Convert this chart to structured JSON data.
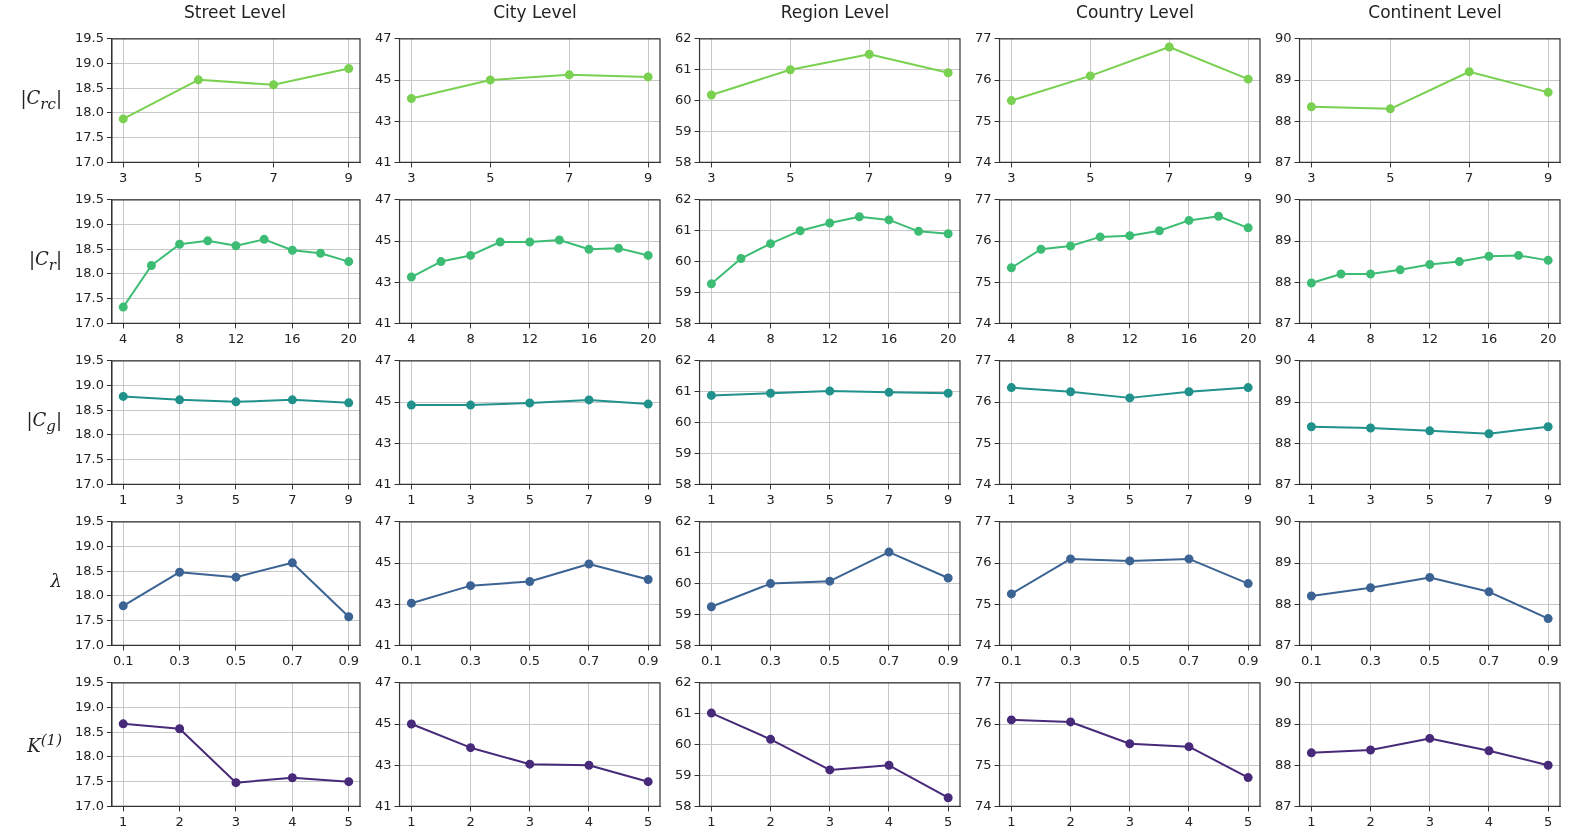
{
  "chart_data": [
    {
      "type": "line",
      "title": "Street Level",
      "ylabel": "|C$_{rc}$|",
      "x": [
        3,
        5,
        7,
        9
      ],
      "values": [
        17.88,
        18.67,
        18.57,
        18.9
      ],
      "color": "#7ad151",
      "xlim": [
        2.7,
        9.3
      ],
      "xticks": [
        3,
        5,
        7,
        9
      ],
      "ylim": [
        17,
        19.5
      ],
      "yticks": [
        {
          "value": 17,
          "label": "17.0"
        },
        17.5,
        {
          "value": 18,
          "label": "18.0"
        },
        18.5,
        {
          "value": 19,
          "label": "19.0"
        },
        19.5
      ],
      "grid": true,
      "marker": "circle"
    },
    {
      "type": "line",
      "title": "City Level",
      "x": [
        3,
        5,
        7,
        9
      ],
      "values": [
        44.1,
        45.0,
        45.25,
        45.15
      ],
      "color": "#7ad151",
      "xlim": [
        2.7,
        9.3
      ],
      "xticks": [
        3,
        5,
        7,
        9
      ],
      "ylim": [
        41,
        47
      ],
      "yticks": [
        41,
        43,
        45,
        47
      ],
      "grid": true,
      "marker": "circle"
    },
    {
      "type": "line",
      "title": "Region Level",
      "x": [
        3,
        5,
        7,
        9
      ],
      "values": [
        60.18,
        61.0,
        61.5,
        60.9
      ],
      "color": "#7ad151",
      "xlim": [
        2.7,
        9.3
      ],
      "xticks": [
        3,
        5,
        7,
        9
      ],
      "ylim": [
        58,
        62
      ],
      "yticks": [
        58,
        59,
        60,
        61,
        62
      ],
      "grid": true,
      "marker": "circle"
    },
    {
      "type": "line",
      "title": "Country Level",
      "x": [
        3,
        5,
        7,
        9
      ],
      "values": [
        75.5,
        76.1,
        76.8,
        76.02
      ],
      "color": "#7ad151",
      "xlim": [
        2.7,
        9.3
      ],
      "xticks": [
        3,
        5,
        7,
        9
      ],
      "ylim": [
        74,
        77
      ],
      "yticks": [
        74,
        75,
        76,
        77
      ],
      "grid": true,
      "marker": "circle"
    },
    {
      "type": "line",
      "title": "Continent Level",
      "x": [
        3,
        5,
        7,
        9
      ],
      "values": [
        88.35,
        88.3,
        89.2,
        88.7
      ],
      "color": "#7ad151",
      "xlim": [
        2.7,
        9.3
      ],
      "xticks": [
        3,
        5,
        7,
        9
      ],
      "ylim": [
        87,
        90
      ],
      "yticks": [
        87,
        88,
        89,
        90
      ],
      "grid": true,
      "marker": "circle"
    },
    {
      "type": "line",
      "ylabel": "|C$_{r}$|",
      "x": [
        4,
        6,
        8,
        10,
        12,
        14,
        16,
        18,
        20
      ],
      "values": [
        17.33,
        18.17,
        18.6,
        18.67,
        18.57,
        18.7,
        18.48,
        18.42,
        18.25
      ],
      "color": "#3dbc74",
      "xlim": [
        3.2,
        20.8
      ],
      "xticks": [
        4,
        8,
        12,
        16,
        20
      ],
      "ylim": [
        17,
        19.5
      ],
      "yticks": [
        {
          "value": 17,
          "label": "17.0"
        },
        17.5,
        {
          "value": 18,
          "label": "18.0"
        },
        18.5,
        {
          "value": 19,
          "label": "19.0"
        },
        19.5
      ],
      "grid": true,
      "marker": "circle"
    },
    {
      "type": "line",
      "x": [
        4,
        6,
        8,
        10,
        12,
        14,
        16,
        18,
        20
      ],
      "values": [
        43.25,
        44.0,
        44.3,
        44.95,
        44.95,
        45.05,
        44.6,
        44.65,
        44.3
      ],
      "color": "#3dbc74",
      "xlim": [
        3.2,
        20.8
      ],
      "xticks": [
        4,
        8,
        12,
        16,
        20
      ],
      "ylim": [
        41,
        47
      ],
      "yticks": [
        41,
        43,
        45,
        47
      ],
      "grid": true,
      "marker": "circle"
    },
    {
      "type": "line",
      "x": [
        4,
        6,
        8,
        10,
        12,
        14,
        16,
        18,
        20
      ],
      "values": [
        59.28,
        60.1,
        60.58,
        61.0,
        61.25,
        61.45,
        61.35,
        60.98,
        60.9
      ],
      "color": "#3dbc74",
      "xlim": [
        3.2,
        20.8
      ],
      "xticks": [
        4,
        8,
        12,
        16,
        20
      ],
      "ylim": [
        58,
        62
      ],
      "yticks": [
        58,
        59,
        60,
        61,
        62
      ],
      "grid": true,
      "marker": "circle"
    },
    {
      "type": "line",
      "x": [
        4,
        6,
        8,
        10,
        12,
        14,
        16,
        18,
        20
      ],
      "values": [
        75.35,
        75.8,
        75.88,
        76.1,
        76.13,
        76.25,
        76.5,
        76.6,
        76.32
      ],
      "color": "#3dbc74",
      "xlim": [
        3.2,
        20.8
      ],
      "xticks": [
        4,
        8,
        12,
        16,
        20
      ],
      "ylim": [
        74,
        77
      ],
      "yticks": [
        74,
        75,
        76,
        77
      ],
      "grid": true,
      "marker": "circle"
    },
    {
      "type": "line",
      "x": [
        4,
        6,
        8,
        10,
        12,
        14,
        16,
        18,
        20
      ],
      "values": [
        87.98,
        88.2,
        88.2,
        88.3,
        88.43,
        88.5,
        88.63,
        88.65,
        88.53
      ],
      "color": "#3dbc74",
      "xlim": [
        3.2,
        20.8
      ],
      "xticks": [
        4,
        8,
        12,
        16,
        20
      ],
      "ylim": [
        87,
        90
      ],
      "yticks": [
        87,
        88,
        89,
        90
      ],
      "grid": true,
      "marker": "circle"
    },
    {
      "type": "line",
      "ylabel": "|C$_{g}$|",
      "x": [
        1,
        3,
        5,
        7,
        9
      ],
      "values": [
        18.78,
        18.71,
        18.67,
        18.71,
        18.65
      ],
      "color": "#21918c",
      "xlim": [
        0.6,
        9.4
      ],
      "xticks": [
        1,
        3,
        5,
        7,
        9
      ],
      "ylim": [
        17,
        19.5
      ],
      "yticks": [
        {
          "value": 17,
          "label": "17.0"
        },
        17.5,
        {
          "value": 18,
          "label": "18.0"
        },
        18.5,
        {
          "value": 19,
          "label": "19.0"
        },
        19.5
      ],
      "grid": true,
      "marker": "circle"
    },
    {
      "type": "line",
      "x": [
        1,
        3,
        5,
        7,
        9
      ],
      "values": [
        44.85,
        44.85,
        44.95,
        45.1,
        44.9
      ],
      "color": "#21918c",
      "xlim": [
        0.6,
        9.4
      ],
      "xticks": [
        1,
        3,
        5,
        7,
        9
      ],
      "ylim": [
        41,
        47
      ],
      "yticks": [
        41,
        43,
        45,
        47
      ],
      "grid": true,
      "marker": "circle"
    },
    {
      "type": "line",
      "x": [
        1,
        3,
        5,
        7,
        9
      ],
      "values": [
        60.88,
        60.95,
        61.02,
        60.98,
        60.95
      ],
      "color": "#21918c",
      "xlim": [
        0.6,
        9.4
      ],
      "xticks": [
        1,
        3,
        5,
        7,
        9
      ],
      "ylim": [
        58,
        62
      ],
      "yticks": [
        58,
        59,
        60,
        61,
        62
      ],
      "grid": true,
      "marker": "circle"
    },
    {
      "type": "line",
      "x": [
        1,
        3,
        5,
        7,
        9
      ],
      "values": [
        76.35,
        76.25,
        76.1,
        76.25,
        76.35
      ],
      "color": "#21918c",
      "xlim": [
        0.6,
        9.4
      ],
      "xticks": [
        1,
        3,
        5,
        7,
        9
      ],
      "ylim": [
        74,
        77
      ],
      "yticks": [
        74,
        75,
        76,
        77
      ],
      "grid": true,
      "marker": "circle"
    },
    {
      "type": "line",
      "x": [
        1,
        3,
        5,
        7,
        9
      ],
      "values": [
        88.4,
        88.37,
        88.3,
        88.23,
        88.4
      ],
      "color": "#21918c",
      "xlim": [
        0.6,
        9.4
      ],
      "xticks": [
        1,
        3,
        5,
        7,
        9
      ],
      "ylim": [
        87,
        90
      ],
      "yticks": [
        87,
        88,
        89,
        90
      ],
      "grid": true,
      "marker": "circle"
    },
    {
      "type": "line",
      "ylabel": "λ",
      "x": [
        0.1,
        0.3,
        0.5,
        0.7,
        0.9
      ],
      "values": [
        17.8,
        18.48,
        18.38,
        18.67,
        17.58
      ],
      "color": "#3b6393",
      "xlim": [
        0.06,
        0.94
      ],
      "xticks": [
        0.1,
        0.3,
        0.5,
        0.7,
        0.9
      ],
      "ylim": [
        17,
        19.5
      ],
      "yticks": [
        {
          "value": 17,
          "label": "17.0"
        },
        17.5,
        {
          "value": 18,
          "label": "18.0"
        },
        18.5,
        {
          "value": 19,
          "label": "19.0"
        },
        19.5
      ],
      "grid": true,
      "marker": "circle"
    },
    {
      "type": "line",
      "x": [
        0.1,
        0.3,
        0.5,
        0.7,
        0.9
      ],
      "values": [
        43.05,
        43.9,
        44.1,
        44.95,
        44.2
      ],
      "color": "#3b6393",
      "xlim": [
        0.06,
        0.94
      ],
      "xticks": [
        0.1,
        0.3,
        0.5,
        0.7,
        0.9
      ],
      "ylim": [
        41,
        47
      ],
      "yticks": [
        41,
        43,
        45,
        47
      ],
      "grid": true,
      "marker": "circle"
    },
    {
      "type": "line",
      "x": [
        0.1,
        0.3,
        0.5,
        0.7,
        0.9
      ],
      "values": [
        59.25,
        60.0,
        60.08,
        61.02,
        60.18
      ],
      "color": "#3b6393",
      "xlim": [
        0.06,
        0.94
      ],
      "xticks": [
        0.1,
        0.3,
        0.5,
        0.7,
        0.9
      ],
      "ylim": [
        58,
        62
      ],
      "yticks": [
        58,
        59,
        60,
        61,
        62
      ],
      "grid": true,
      "marker": "circle"
    },
    {
      "type": "line",
      "x": [
        0.1,
        0.3,
        0.5,
        0.7,
        0.9
      ],
      "values": [
        75.25,
        76.1,
        76.05,
        76.1,
        75.5
      ],
      "color": "#3b6393",
      "xlim": [
        0.06,
        0.94
      ],
      "xticks": [
        0.1,
        0.3,
        0.5,
        0.7,
        0.9
      ],
      "ylim": [
        74,
        77
      ],
      "yticks": [
        74,
        75,
        76,
        77
      ],
      "grid": true,
      "marker": "circle"
    },
    {
      "type": "line",
      "x": [
        0.1,
        0.3,
        0.5,
        0.7,
        0.9
      ],
      "values": [
        88.2,
        88.4,
        88.65,
        88.3,
        87.65
      ],
      "color": "#3b6393",
      "xlim": [
        0.06,
        0.94
      ],
      "xticks": [
        0.1,
        0.3,
        0.5,
        0.7,
        0.9
      ],
      "ylim": [
        87,
        90
      ],
      "yticks": [
        87,
        88,
        89,
        90
      ],
      "grid": true,
      "marker": "circle"
    },
    {
      "type": "line",
      "ylabel": "K$^{(1)}$",
      "x": [
        1,
        2,
        3,
        4,
        5
      ],
      "values": [
        18.67,
        18.57,
        17.48,
        17.58,
        17.5
      ],
      "color": "#482a7a",
      "xlim": [
        0.8,
        5.2
      ],
      "xticks": [
        1,
        2,
        3,
        4,
        5
      ],
      "ylim": [
        17,
        19.5
      ],
      "yticks": [
        {
          "value": 17,
          "label": "17.0"
        },
        17.5,
        {
          "value": 18,
          "label": "18.0"
        },
        18.5,
        {
          "value": 19,
          "label": "19.0"
        },
        19.5
      ],
      "grid": true,
      "marker": "circle"
    },
    {
      "type": "line",
      "x": [
        1,
        2,
        3,
        4,
        5
      ],
      "values": [
        45.0,
        43.85,
        43.05,
        43.0,
        42.2
      ],
      "color": "#482a7a",
      "xlim": [
        0.8,
        5.2
      ],
      "xticks": [
        1,
        2,
        3,
        4,
        5
      ],
      "ylim": [
        41,
        47
      ],
      "yticks": [
        41,
        43,
        45,
        47
      ],
      "grid": true,
      "marker": "circle"
    },
    {
      "type": "line",
      "x": [
        1,
        2,
        3,
        4,
        5
      ],
      "values": [
        61.02,
        60.17,
        59.18,
        59.33,
        58.28
      ],
      "color": "#482a7a",
      "xlim": [
        0.8,
        5.2
      ],
      "xticks": [
        1,
        2,
        3,
        4,
        5
      ],
      "ylim": [
        58,
        62
      ],
      "yticks": [
        58,
        59,
        60,
        61,
        62
      ],
      "grid": true,
      "marker": "circle"
    },
    {
      "type": "line",
      "x": [
        1,
        2,
        3,
        4,
        5
      ],
      "values": [
        76.1,
        76.05,
        75.52,
        75.45,
        74.7
      ],
      "color": "#482a7a",
      "xlim": [
        0.8,
        5.2
      ],
      "xticks": [
        1,
        2,
        3,
        4,
        5
      ],
      "ylim": [
        74,
        77
      ],
      "yticks": [
        74,
        75,
        76,
        77
      ],
      "grid": true,
      "marker": "circle"
    },
    {
      "type": "line",
      "x": [
        1,
        2,
        3,
        4,
        5
      ],
      "values": [
        88.3,
        88.37,
        88.65,
        88.35,
        88.0
      ],
      "color": "#482a7a",
      "xlim": [
        0.8,
        5.2
      ],
      "xticks": [
        1,
        2,
        3,
        4,
        5
      ],
      "ylim": [
        87,
        90
      ],
      "yticks": [
        87,
        88,
        89,
        90
      ],
      "grid": true,
      "marker": "circle"
    }
  ]
}
